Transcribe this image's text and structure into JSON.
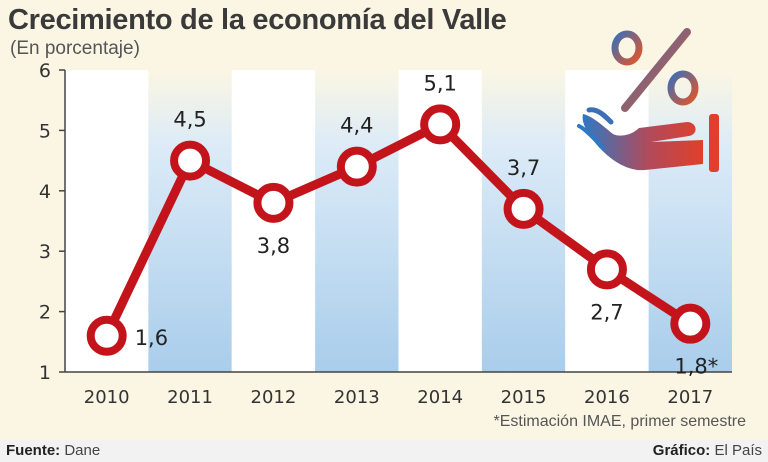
{
  "title": "Crecimiento de la economía del Valle",
  "subtitle": "(En porcentaje)",
  "footnote": "*Estimación IMAE, primer semestre",
  "footer": {
    "source_label": "Fuente:",
    "source_value": "Dane",
    "credit_label": "Gráfico:",
    "credit_value": "El País"
  },
  "icon": "hand-percent-icon",
  "colors": {
    "line": "#c4141b",
    "band": "#a9cdeb",
    "background": "#fbf6e4"
  },
  "chart_data": {
    "type": "line",
    "title": "Crecimiento de la economía del Valle",
    "subtitle": "(En porcentaje)",
    "x": [
      "2010",
      "2011",
      "2012",
      "2013",
      "2014",
      "2015",
      "2016",
      "2017"
    ],
    "values": [
      1.6,
      4.5,
      3.8,
      4.4,
      5.1,
      3.7,
      2.7,
      1.8
    ],
    "data_labels": [
      "1,6",
      "4,5",
      "3,8",
      "4,4",
      "5,1",
      "3,7",
      "2,7",
      "1,8*"
    ],
    "yticks": [
      "1",
      "2",
      "3",
      "4",
      "5",
      "6"
    ],
    "ylim": [
      1,
      6
    ],
    "xlabel": "",
    "ylabel": "",
    "grid": false,
    "alternating_bands": true
  }
}
